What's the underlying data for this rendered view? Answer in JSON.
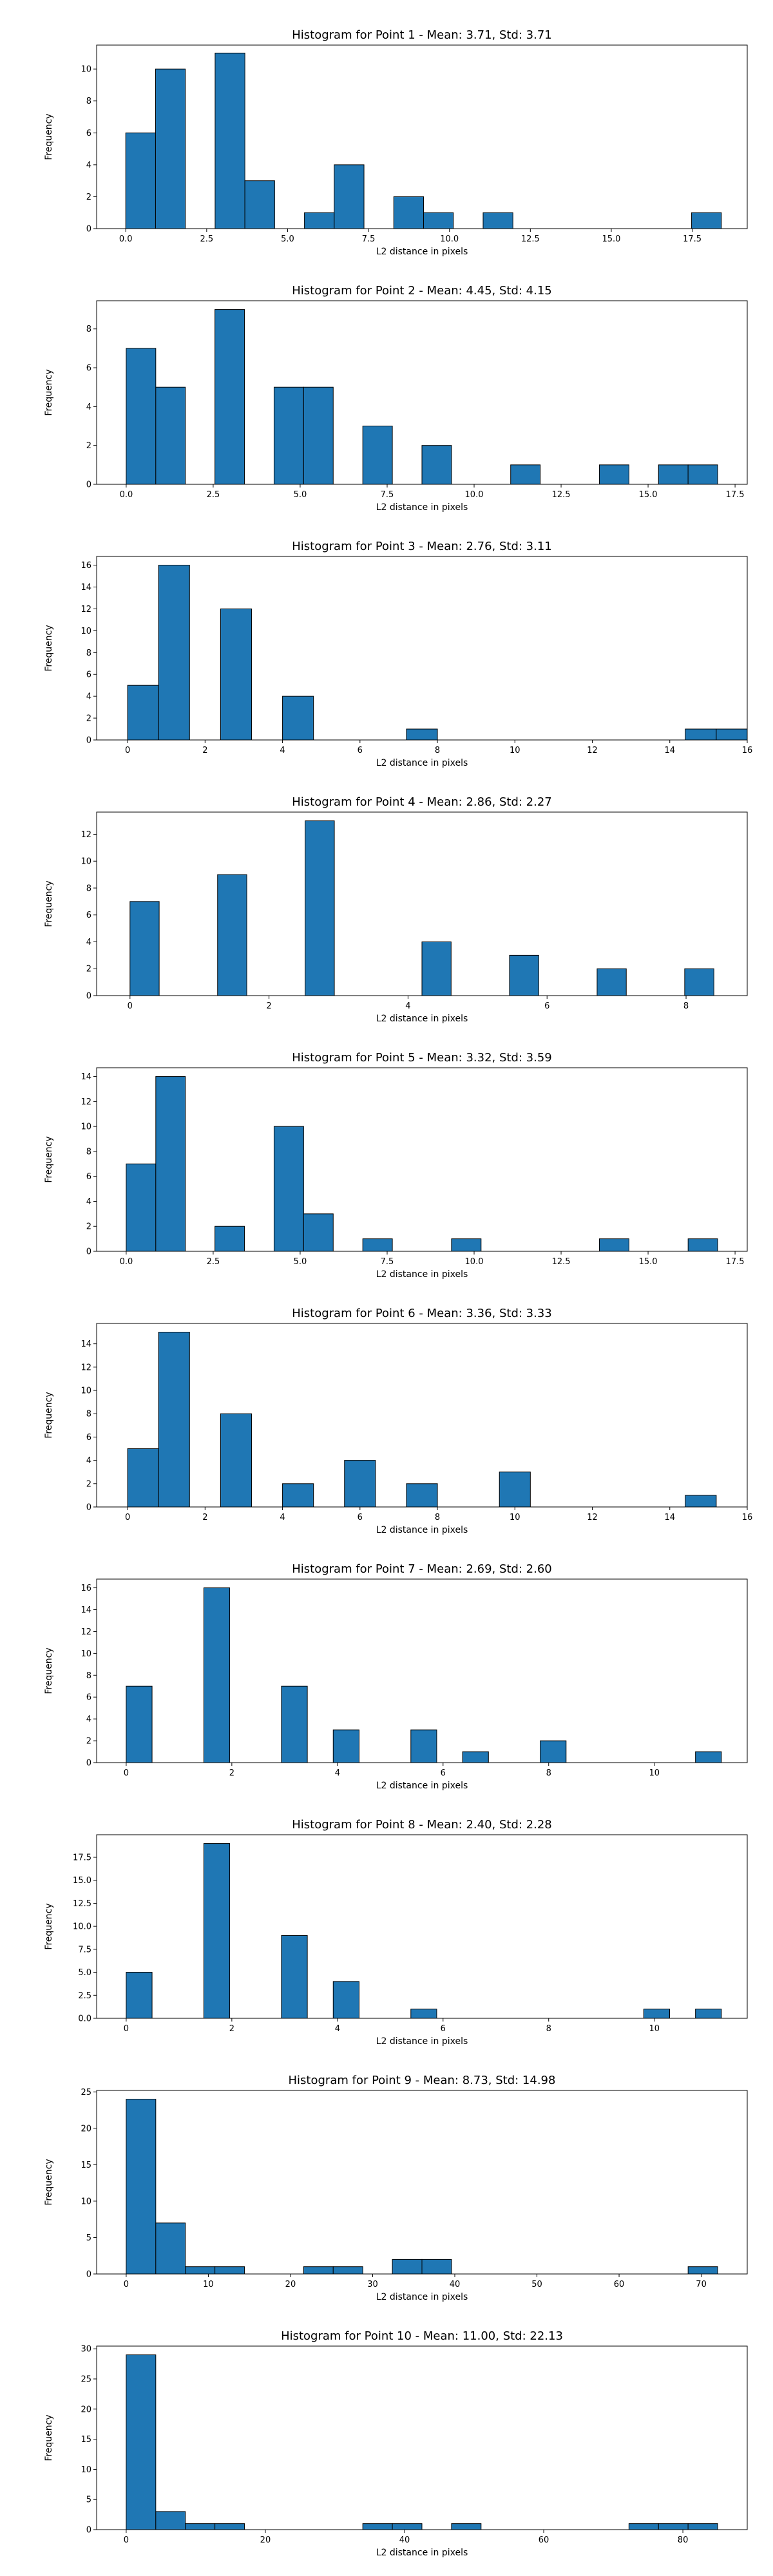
{
  "chart_data": [
    {
      "type": "bar",
      "title": "Histogram for Point 1 - Mean: 3.71, Std: 3.71",
      "xlabel": "L2 distance in pixels",
      "ylabel": "Frequency",
      "xlim": [
        -0.9,
        19.2
      ],
      "ylim": [
        0,
        11.5
      ],
      "xticks": [
        0.0,
        2.5,
        5.0,
        7.5,
        10.0,
        12.5,
        15.0,
        17.5
      ],
      "xtick_labels": [
        "0.0",
        "2.5",
        "5.0",
        "7.5",
        "10.0",
        "12.5",
        "15.0",
        "17.5"
      ],
      "yticks": [
        0,
        2,
        4,
        6,
        8,
        10
      ],
      "ytick_labels": [
        "0",
        "2",
        "4",
        "6",
        "8",
        "10"
      ],
      "bins": [
        [
          0.0,
          0.92,
          6
        ],
        [
          0.92,
          1.84,
          10
        ],
        [
          2.76,
          3.68,
          11
        ],
        [
          3.68,
          4.6,
          3
        ],
        [
          5.52,
          6.44,
          1
        ],
        [
          6.44,
          7.36,
          4
        ],
        [
          8.28,
          9.2,
          2
        ],
        [
          9.2,
          10.12,
          1
        ],
        [
          11.04,
          11.96,
          1
        ],
        [
          17.48,
          18.4,
          1
        ]
      ]
    },
    {
      "type": "bar",
      "title": "Histogram for Point 2 - Mean: 4.45, Std: 4.15",
      "xlabel": "L2 distance in pixels",
      "ylabel": "Frequency",
      "xlim": [
        -0.85,
        17.85
      ],
      "ylim": [
        0,
        9.45
      ],
      "xticks": [
        0.0,
        2.5,
        5.0,
        7.5,
        10.0,
        12.5,
        15.0,
        17.5
      ],
      "xtick_labels": [
        "0.0",
        "2.5",
        "5.0",
        "7.5",
        "10.0",
        "12.5",
        "15.0",
        "17.5"
      ],
      "yticks": [
        0,
        2,
        4,
        6,
        8
      ],
      "ytick_labels": [
        "0",
        "2",
        "4",
        "6",
        "8"
      ],
      "bins": [
        [
          0.0,
          0.85,
          7
        ],
        [
          0.85,
          1.7,
          5
        ],
        [
          2.55,
          3.4,
          9
        ],
        [
          4.25,
          5.1,
          5
        ],
        [
          5.1,
          5.95,
          5
        ],
        [
          6.8,
          7.65,
          3
        ],
        [
          8.5,
          9.35,
          2
        ],
        [
          11.05,
          11.9,
          1
        ],
        [
          13.6,
          14.45,
          1
        ],
        [
          15.3,
          16.15,
          1
        ],
        [
          16.15,
          17.0,
          1
        ]
      ]
    },
    {
      "type": "bar",
      "title": "Histogram for Point 3 - Mean: 2.76, Std: 3.11",
      "xlabel": "L2 distance in pixels",
      "ylabel": "Frequency",
      "xlim": [
        -0.8,
        16.0
      ],
      "ylim": [
        0,
        16.8
      ],
      "xticks": [
        0,
        2,
        4,
        6,
        8,
        10,
        12,
        14,
        16
      ],
      "xtick_labels": [
        "0",
        "2",
        "4",
        "6",
        "8",
        "10",
        "12",
        "14",
        "16"
      ],
      "yticks": [
        0,
        2,
        4,
        6,
        8,
        10,
        12,
        14,
        16
      ],
      "ytick_labels": [
        "0",
        "2",
        "4",
        "6",
        "8",
        "10",
        "12",
        "14",
        "16"
      ],
      "bins": [
        [
          0.0,
          0.8,
          5
        ],
        [
          0.8,
          1.6,
          16
        ],
        [
          2.4,
          3.2,
          12
        ],
        [
          4.0,
          4.8,
          4
        ],
        [
          7.2,
          8.0,
          1
        ],
        [
          14.4,
          15.2,
          1
        ],
        [
          15.2,
          16.0,
          1
        ]
      ]
    },
    {
      "type": "bar",
      "title": "Histogram for Point 4 - Mean: 2.86, Std: 2.27",
      "xlabel": "L2 distance in pixels",
      "ylabel": "Frequency",
      "xlim": [
        -0.48,
        8.88
      ],
      "ylim": [
        0,
        13.65
      ],
      "xticks": [
        0,
        2,
        4,
        6,
        8
      ],
      "xtick_labels": [
        "0",
        "2",
        "4",
        "6",
        "8"
      ],
      "yticks": [
        0,
        2,
        4,
        6,
        8,
        10,
        12
      ],
      "ytick_labels": [
        "0",
        "2",
        "4",
        "6",
        "8",
        "10",
        "12"
      ],
      "bins": [
        [
          0.0,
          0.42,
          7
        ],
        [
          1.26,
          1.68,
          9
        ],
        [
          2.52,
          2.94,
          13
        ],
        [
          4.2,
          4.62,
          4
        ],
        [
          5.46,
          5.88,
          3
        ],
        [
          6.72,
          7.14,
          2
        ],
        [
          7.98,
          8.4,
          2
        ]
      ]
    },
    {
      "type": "bar",
      "title": "Histogram for Point 5 - Mean: 3.32, Std: 3.59",
      "xlabel": "L2 distance in pixels",
      "ylabel": "Frequency",
      "xlim": [
        -0.85,
        17.85
      ],
      "ylim": [
        0,
        14.7
      ],
      "xticks": [
        0.0,
        2.5,
        5.0,
        7.5,
        10.0,
        12.5,
        15.0,
        17.5
      ],
      "xtick_labels": [
        "0.0",
        "2.5",
        "5.0",
        "7.5",
        "10.0",
        "12.5",
        "15.0",
        "17.5"
      ],
      "yticks": [
        0,
        2,
        4,
        6,
        8,
        10,
        12,
        14
      ],
      "ytick_labels": [
        "0",
        "2",
        "4",
        "6",
        "8",
        "10",
        "12",
        "14"
      ],
      "bins": [
        [
          0.0,
          0.85,
          7
        ],
        [
          0.85,
          1.7,
          14
        ],
        [
          2.55,
          3.4,
          2
        ],
        [
          4.25,
          5.1,
          10
        ],
        [
          5.1,
          5.95,
          3
        ],
        [
          6.8,
          7.65,
          1
        ],
        [
          9.35,
          10.2,
          1
        ],
        [
          13.6,
          14.45,
          1
        ],
        [
          16.15,
          17.0,
          1
        ]
      ]
    },
    {
      "type": "bar",
      "title": "Histogram for Point 6 - Mean: 3.36, Std: 3.33",
      "xlabel": "L2 distance in pixels",
      "ylabel": "Frequency",
      "xlim": [
        -0.8,
        16.0
      ],
      "ylim": [
        0,
        15.75
      ],
      "xticks": [
        0,
        2,
        4,
        6,
        8,
        10,
        12,
        14,
        16
      ],
      "xtick_labels": [
        "0",
        "2",
        "4",
        "6",
        "8",
        "10",
        "12",
        "14",
        "16"
      ],
      "yticks": [
        0,
        2,
        4,
        6,
        8,
        10,
        12,
        14
      ],
      "ytick_labels": [
        "0",
        "2",
        "4",
        "6",
        "8",
        "10",
        "12",
        "14"
      ],
      "bins": [
        [
          0.0,
          0.8,
          5
        ],
        [
          0.8,
          1.6,
          15
        ],
        [
          2.4,
          3.2,
          8
        ],
        [
          4.0,
          4.8,
          2
        ],
        [
          5.6,
          6.4,
          4
        ],
        [
          7.2,
          8.0,
          2
        ],
        [
          9.6,
          10.4,
          3
        ],
        [
          14.4,
          15.2,
          1
        ]
      ]
    },
    {
      "type": "bar",
      "title": "Histogram for Point 7 - Mean: 2.69, Std: 2.60",
      "xlabel": "L2 distance in pixels",
      "ylabel": "Frequency",
      "xlim": [
        -0.56,
        11.76
      ],
      "ylim": [
        0,
        16.8
      ],
      "xticks": [
        0,
        2,
        4,
        6,
        8,
        10
      ],
      "xtick_labels": [
        "0",
        "2",
        "4",
        "6",
        "8",
        "10"
      ],
      "yticks": [
        0,
        2,
        4,
        6,
        8,
        10,
        12,
        14,
        16
      ],
      "ytick_labels": [
        "0",
        "2",
        "4",
        "6",
        "8",
        "10",
        "12",
        "14",
        "16"
      ],
      "bins": [
        [
          0.0,
          0.49,
          7
        ],
        [
          1.47,
          1.96,
          16
        ],
        [
          2.94,
          3.43,
          7
        ],
        [
          3.92,
          4.41,
          3
        ],
        [
          5.39,
          5.88,
          3
        ],
        [
          6.37,
          6.86,
          1
        ],
        [
          7.84,
          8.33,
          2
        ],
        [
          10.78,
          11.27,
          1
        ]
      ]
    },
    {
      "type": "bar",
      "title": "Histogram for Point 8 - Mean: 2.40, Std: 2.28",
      "xlabel": "L2 distance in pixels",
      "ylabel": "Frequency",
      "xlim": [
        -0.56,
        11.76
      ],
      "ylim": [
        0,
        19.95
      ],
      "xticks": [
        0,
        2,
        4,
        6,
        8,
        10
      ],
      "xtick_labels": [
        "0",
        "2",
        "4",
        "6",
        "8",
        "10"
      ],
      "yticks": [
        0,
        2.5,
        5,
        7.5,
        10,
        12.5,
        15,
        17.5
      ],
      "ytick_labels": [
        "0.0",
        "2.5",
        "5.0",
        "7.5",
        "10.0",
        "12.5",
        "15.0",
        "17.5"
      ],
      "bins": [
        [
          0.0,
          0.49,
          5
        ],
        [
          1.47,
          1.96,
          19
        ],
        [
          2.94,
          3.43,
          9
        ],
        [
          3.92,
          4.41,
          4
        ],
        [
          5.39,
          5.88,
          1
        ],
        [
          9.8,
          10.29,
          1
        ],
        [
          10.78,
          11.27,
          1
        ]
      ]
    },
    {
      "type": "bar",
      "title": "Histogram for Point 9 - Mean: 8.73, Std: 14.98",
      "xlabel": "L2 distance in pixels",
      "ylabel": "Frequency",
      "xlim": [
        -3.6,
        75.6
      ],
      "ylim": [
        0,
        25.2
      ],
      "xticks": [
        0,
        10,
        20,
        30,
        40,
        50,
        60,
        70
      ],
      "xtick_labels": [
        "0",
        "10",
        "20",
        "30",
        "40",
        "50",
        "60",
        "70"
      ],
      "yticks": [
        0,
        5,
        10,
        15,
        20,
        25
      ],
      "ytick_labels": [
        "0",
        "5",
        "10",
        "15",
        "20",
        "25"
      ],
      "bins": [
        [
          0.0,
          3.6,
          24
        ],
        [
          3.6,
          7.2,
          7
        ],
        [
          7.2,
          10.8,
          1
        ],
        [
          10.8,
          14.4,
          1
        ],
        [
          21.6,
          25.2,
          1
        ],
        [
          25.2,
          28.8,
          1
        ],
        [
          32.4,
          36.0,
          2
        ],
        [
          36.0,
          39.6,
          2
        ],
        [
          68.4,
          72.0,
          1
        ]
      ]
    },
    {
      "type": "bar",
      "title": "Histogram for Point 10 - Mean: 11.00, Std: 22.13",
      "xlabel": "L2 distance in pixels",
      "ylabel": "Frequency",
      "xlim": [
        -4.25,
        89.25
      ],
      "ylim": [
        0,
        30.45
      ],
      "xticks": [
        0,
        20,
        40,
        60,
        80
      ],
      "xtick_labels": [
        "0",
        "20",
        "40",
        "60",
        "80"
      ],
      "yticks": [
        0,
        5,
        10,
        15,
        20,
        25,
        30
      ],
      "ytick_labels": [
        "0",
        "5",
        "10",
        "15",
        "20",
        "25",
        "30"
      ],
      "bins": [
        [
          0.0,
          4.25,
          29
        ],
        [
          4.25,
          8.5,
          3
        ],
        [
          8.5,
          12.75,
          1
        ],
        [
          12.75,
          17.0,
          1
        ],
        [
          34.0,
          38.25,
          1
        ],
        [
          38.25,
          42.5,
          1
        ],
        [
          46.75,
          51.0,
          1
        ],
        [
          72.25,
          76.5,
          1
        ],
        [
          76.5,
          80.75,
          1
        ],
        [
          80.75,
          85.0,
          1
        ]
      ]
    }
  ]
}
